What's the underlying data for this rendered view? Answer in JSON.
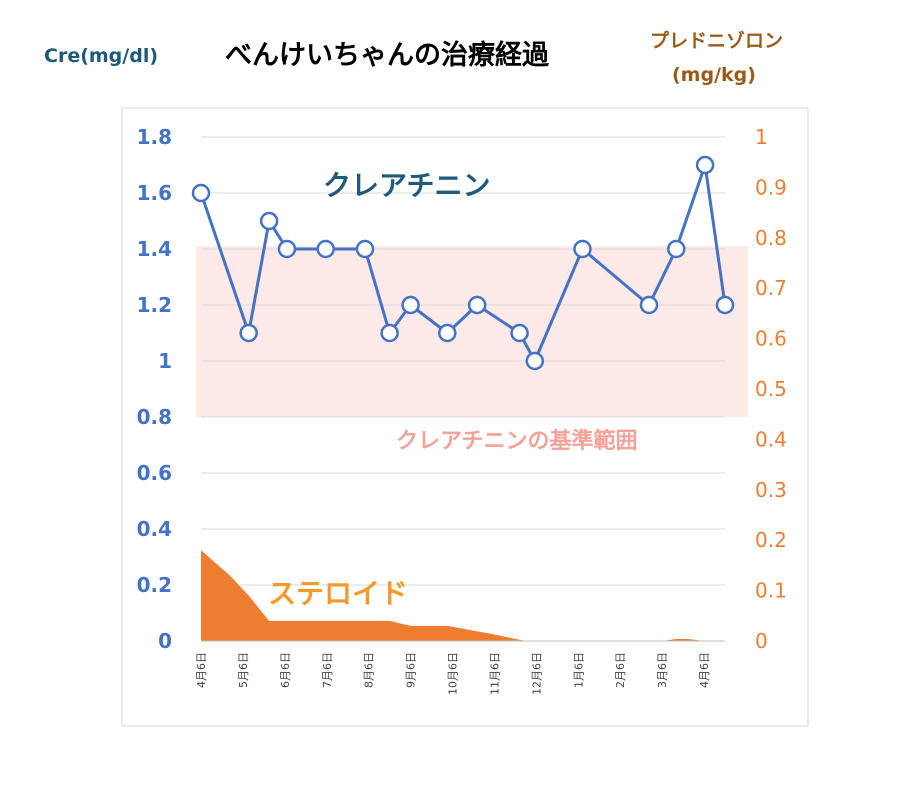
{
  "title": "べんけいちゃんの治療経過",
  "left_axis_unit": "Cre(mg/dl)",
  "right_axis_unit_line1": "プレドニゾロン",
  "right_axis_unit_line2": "(mg/kg)",
  "chart_data": {
    "type": "line",
    "x": [
      "4月6日",
      "",
      "5月6日",
      "",
      "6月6日",
      "",
      "7月6日",
      "",
      "8月6日",
      "",
      "9月6日",
      "",
      "10月6日",
      "",
      "11月6日",
      "",
      "12月6日",
      "",
      "1月6日",
      "",
      "2月6日",
      "",
      "3月6日",
      "",
      "4月6日",
      ""
    ],
    "x_tick_labels": [
      "4月6日",
      "5月6日",
      "6月6日",
      "7月6日",
      "8月6日",
      "9月6日",
      "10月6日",
      "11月6日",
      "12月6日",
      "1月6日",
      "2月6日",
      "3月6日",
      "4月6日"
    ],
    "x_tick_positions": [
      0,
      0.08,
      0.16,
      0.24,
      0.32,
      0.4,
      0.48,
      0.56,
      0.64,
      0.72,
      0.8,
      0.88,
      0.96
    ],
    "series": [
      {
        "name": "クレアチニン",
        "axis": "left",
        "color": "#4472c4",
        "points": [
          {
            "x": 0.0,
            "y": 1.6
          },
          {
            "x": 0.091,
            "y": 1.1
          },
          {
            "x": 0.13,
            "y": 1.5
          },
          {
            "x": 0.164,
            "y": 1.4
          },
          {
            "x": 0.238,
            "y": 1.4
          },
          {
            "x": 0.313,
            "y": 1.4
          },
          {
            "x": 0.36,
            "y": 1.1
          },
          {
            "x": 0.4,
            "y": 1.2
          },
          {
            "x": 0.47,
            "y": 1.1
          },
          {
            "x": 0.527,
            "y": 1.2
          },
          {
            "x": 0.608,
            "y": 1.1
          },
          {
            "x": 0.637,
            "y": 1.0
          },
          {
            "x": 0.728,
            "y": 1.4
          },
          {
            "x": 0.855,
            "y": 1.2
          },
          {
            "x": 0.907,
            "y": 1.4
          },
          {
            "x": 0.962,
            "y": 1.7
          },
          {
            "x": 1.0,
            "y": 1.2
          }
        ]
      },
      {
        "name": "ステロイド",
        "axis": "right",
        "type": "area",
        "color": "#ed7d31",
        "points": [
          {
            "x": 0.0,
            "y": 0.18
          },
          {
            "x": 0.055,
            "y": 0.13
          },
          {
            "x": 0.091,
            "y": 0.09
          },
          {
            "x": 0.13,
            "y": 0.04
          },
          {
            "x": 0.29,
            "y": 0.04
          },
          {
            "x": 0.36,
            "y": 0.04
          },
          {
            "x": 0.4,
            "y": 0.03
          },
          {
            "x": 0.47,
            "y": 0.03
          },
          {
            "x": 0.55,
            "y": 0.015
          },
          {
            "x": 0.62,
            "y": 0.0
          },
          {
            "x": 0.88,
            "y": 0.0
          },
          {
            "x": 0.907,
            "y": 0.004
          },
          {
            "x": 0.93,
            "y": 0.004
          },
          {
            "x": 0.96,
            "y": 0.0
          },
          {
            "x": 1.0,
            "y": 0.0
          }
        ]
      }
    ],
    "y_left": {
      "min": 0,
      "max": 1.8,
      "ticks": [
        0,
        0.2,
        0.4,
        0.6,
        0.8,
        1.0,
        1.2,
        1.4,
        1.6,
        1.8
      ],
      "labels": [
        "0",
        "0.2",
        "0.4",
        "0.6",
        "0.8",
        "1",
        "1.2",
        "1.4",
        "1.6",
        "1.8"
      ]
    },
    "y_right": {
      "min": 0,
      "max": 1.0,
      "ticks": [
        0,
        0.1,
        0.2,
        0.3,
        0.4,
        0.5,
        0.6,
        0.7,
        0.8,
        0.9,
        1.0
      ],
      "labels": [
        "0",
        "0.1",
        "0.2",
        "0.3",
        "0.4",
        "0.5",
        "0.6",
        "0.7",
        "0.8",
        "0.9",
        "1"
      ]
    },
    "reference_band": {
      "label": "クレアチニンの基準範囲",
      "y_min": 0.8,
      "y_max": 1.41,
      "color": "#fde9e7"
    },
    "annotations": {
      "creatinine": "クレアチニン",
      "steroid": "ステロイド",
      "reference": "クレアチニンの基準範囲"
    },
    "colors": {
      "creatinine": "#4472c4",
      "steroid": "#ed7d31",
      "reference_text": "#f4a19a",
      "grid": "#d9d9d9",
      "frame": "#d9d9d9",
      "creatinine_label": "#1f5a7a",
      "steroid_label": "#f39a2d"
    },
    "grid": true,
    "legend": "none"
  }
}
